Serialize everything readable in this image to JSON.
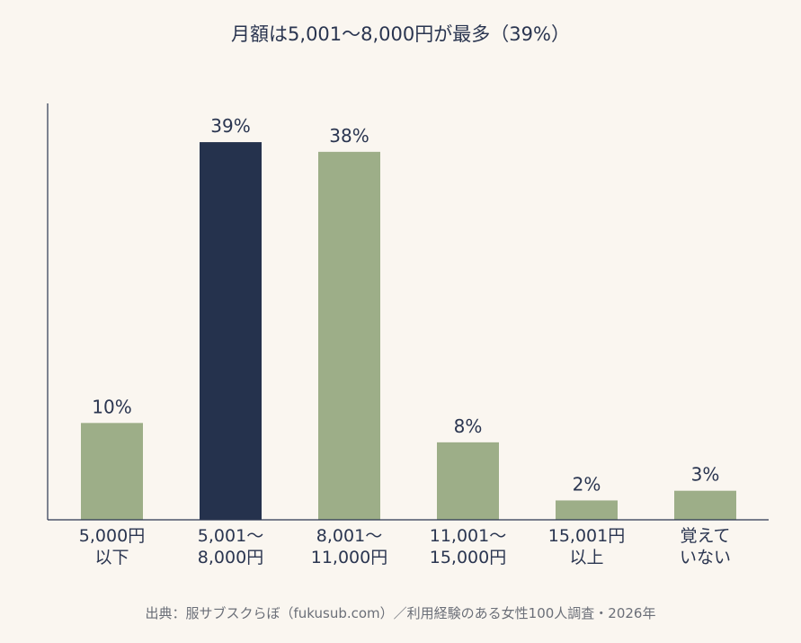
{
  "chart_data": {
    "type": "bar",
    "title": "月額は5,001〜8,000円が最多（39%）",
    "categories": [
      [
        "5,000円",
        "以下"
      ],
      [
        "5,001〜",
        "8,000円"
      ],
      [
        "8,001〜",
        "11,000円"
      ],
      [
        "11,001〜",
        "15,000円"
      ],
      [
        "15,001円",
        "以上"
      ],
      [
        "覚えて",
        "いない"
      ]
    ],
    "values": [
      10,
      39,
      38,
      8,
      2,
      3
    ],
    "value_labels": [
      "10%",
      "39%",
      "38%",
      "8%",
      "2%",
      "3%"
    ],
    "highlight_index": 1,
    "ylim": [
      0,
      43
    ],
    "grid": false,
    "xlabel": "",
    "ylabel": ""
  },
  "colors": {
    "background": "#faf6f0",
    "bar": "#9dae88",
    "highlight": "#25324d",
    "axis": "#2a3550",
    "text": "#2a3550",
    "source_text": "#6b6f78"
  },
  "source": "出典：服サブスクらぼ（fukusub.com）／利用経験のある女性100人調査・2026年"
}
